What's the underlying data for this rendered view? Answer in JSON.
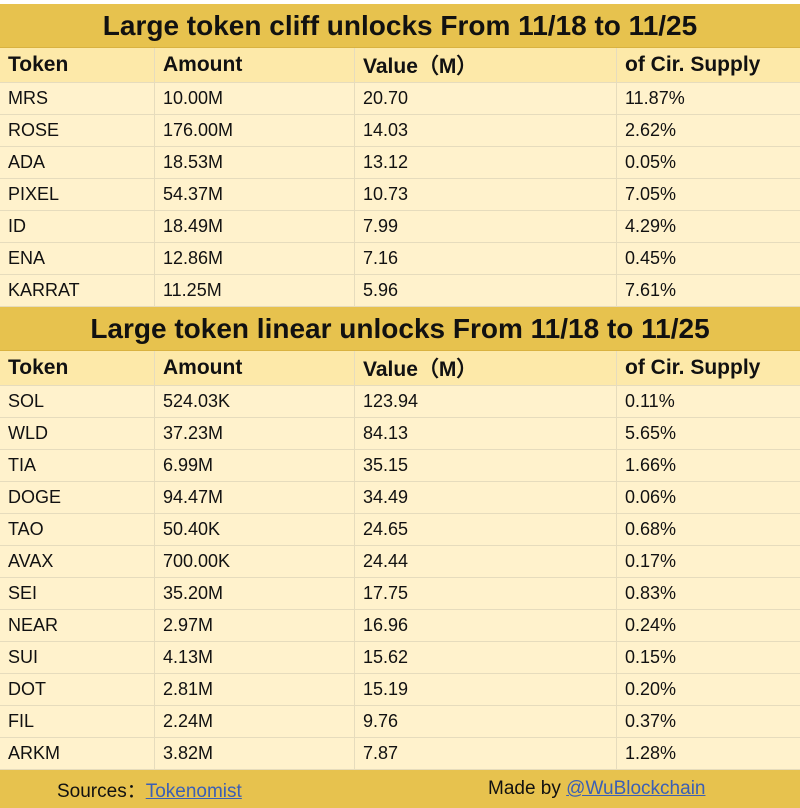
{
  "columns": [
    "Token",
    "Amount",
    "Value（M）",
    "of Cir. Supply"
  ],
  "cliff": {
    "title": "Large token cliff unlocks From 11/18 to 11/25",
    "rows": [
      [
        "MRS",
        "10.00M",
        "20.70",
        "11.87%"
      ],
      [
        "ROSE",
        "176.00M",
        "14.03",
        "2.62%"
      ],
      [
        "ADA",
        "18.53M",
        "13.12",
        "0.05%"
      ],
      [
        "PIXEL",
        "54.37M",
        "10.73",
        "7.05%"
      ],
      [
        "ID",
        "18.49M",
        "7.99",
        "4.29%"
      ],
      [
        "ENA",
        "12.86M",
        "7.16",
        "0.45%"
      ],
      [
        "KARRAT",
        "11.25M",
        "5.96",
        "7.61%"
      ]
    ]
  },
  "linear": {
    "title": "Large token linear unlocks From 11/18 to 11/25",
    "rows": [
      [
        "SOL",
        "524.03K",
        "123.94",
        "0.11%"
      ],
      [
        "WLD",
        "37.23M",
        "84.13",
        "5.65%"
      ],
      [
        "TIA",
        "6.99M",
        "35.15",
        "1.66%"
      ],
      [
        "DOGE",
        "94.47M",
        "34.49",
        "0.06%"
      ],
      [
        "TAO",
        "50.40K",
        "24.65",
        "0.68%"
      ],
      [
        "AVAX",
        "700.00K",
        "24.44",
        "0.17%"
      ],
      [
        "SEI",
        "35.20M",
        "17.75",
        "0.83%"
      ],
      [
        "NEAR",
        "2.97M",
        "16.96",
        "0.24%"
      ],
      [
        "SUI",
        "4.13M",
        "15.62",
        "0.15%"
      ],
      [
        "DOT",
        "2.81M",
        "15.19",
        "0.20%"
      ],
      [
        "FIL",
        "2.24M",
        "9.76",
        "0.37%"
      ],
      [
        "ARKM",
        "3.82M",
        "7.87",
        "1.28%"
      ]
    ]
  },
  "footer": {
    "sources_label": "Sources：",
    "sources_link": "Tokenomist",
    "made_label": "Made by ",
    "made_link": "@WuBlockchain"
  }
}
